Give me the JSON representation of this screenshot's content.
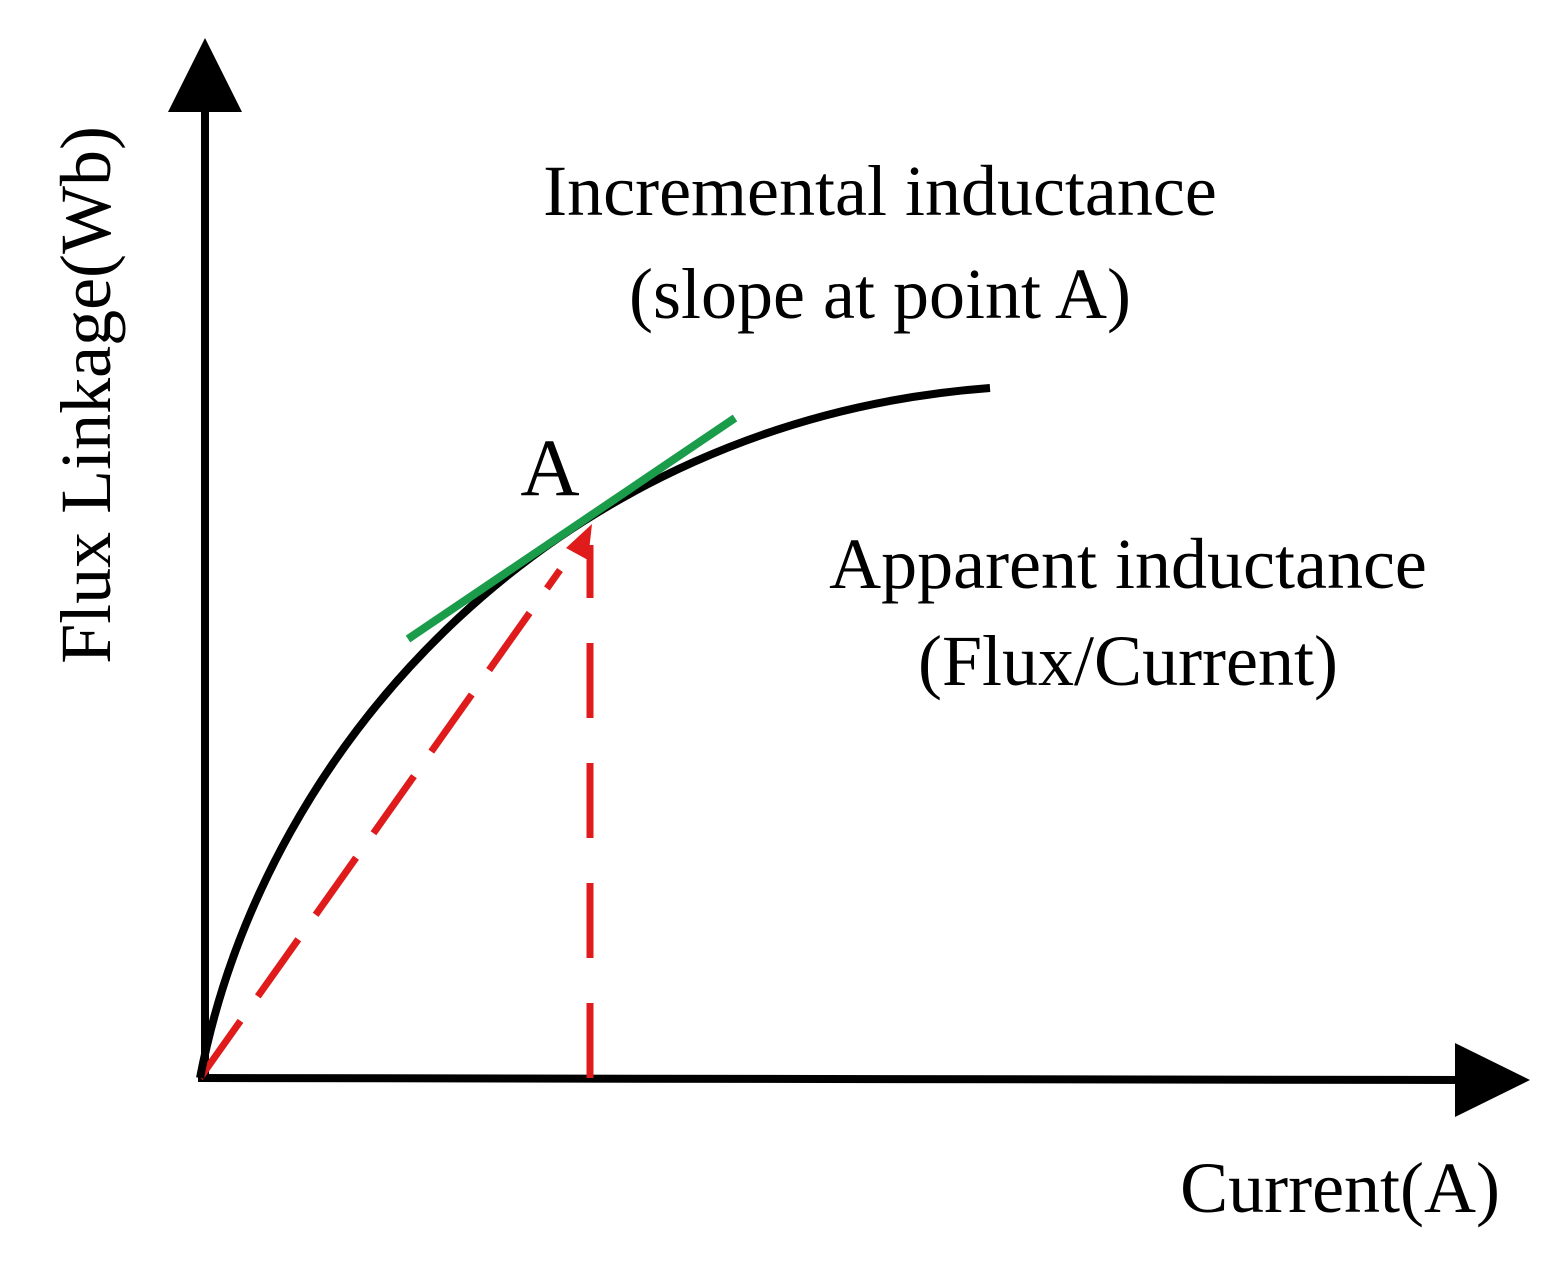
{
  "axes": {
    "x_label": "Current(A)",
    "y_label": "Flux Linkage(Wb)"
  },
  "annotations": {
    "incremental": [
      "Incremental inductance",
      "(slope at point A)"
    ],
    "apparent": [
      "Apparent inductance",
      "(Flux/Current)"
    ]
  },
  "point_label": "A"
}
